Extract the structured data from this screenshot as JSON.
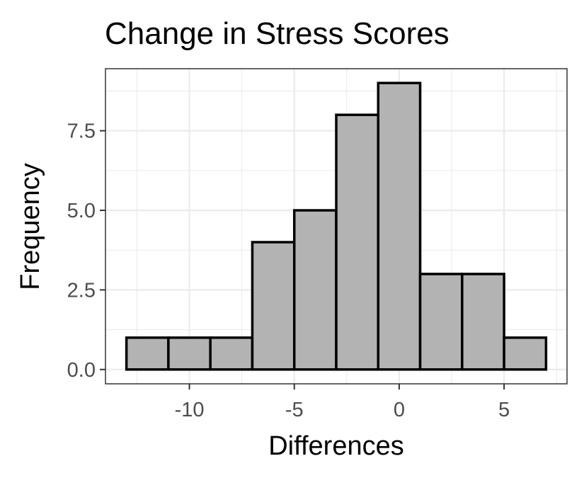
{
  "chart_data": {
    "type": "bar",
    "title": "Change in Stress Scores",
    "xlabel": "Differences",
    "ylabel": "Frequency",
    "bin_width": 2,
    "bins": [
      {
        "x0": -13,
        "x1": -11,
        "count": 1
      },
      {
        "x0": -11,
        "x1": -9,
        "count": 1
      },
      {
        "x0": -9,
        "x1": -7,
        "count": 1
      },
      {
        "x0": -7,
        "x1": -5,
        "count": 4
      },
      {
        "x0": -5,
        "x1": -3,
        "count": 5
      },
      {
        "x0": -3,
        "x1": -1,
        "count": 8
      },
      {
        "x0": -1,
        "x1": 1,
        "count": 9
      },
      {
        "x0": 1,
        "x1": 3,
        "count": 3
      },
      {
        "x0": 3,
        "x1": 5,
        "count": 3
      },
      {
        "x0": 5,
        "x1": 7,
        "count": 1
      }
    ],
    "xlim": [
      -14,
      8
    ],
    "ylim": [
      -0.45,
      9.45
    ],
    "x_ticks": [
      -10,
      -5,
      0,
      5
    ],
    "x_tick_labels": [
      "-10",
      "-5",
      "0",
      "5"
    ],
    "y_ticks": [
      0,
      2.5,
      5,
      7.5
    ],
    "y_tick_labels": [
      "0.0",
      "2.5",
      "5.0",
      "7.5"
    ],
    "grid": true,
    "bar_fill": "#b3b3b3",
    "bar_outline": "#000000"
  }
}
